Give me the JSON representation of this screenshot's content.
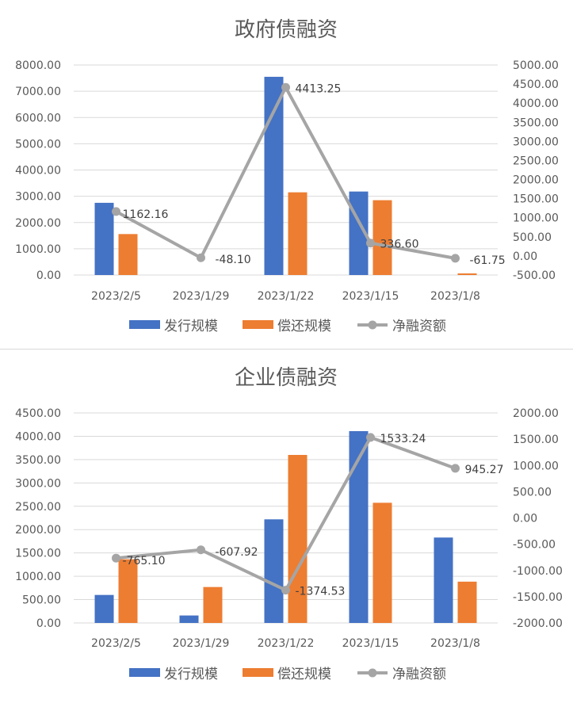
{
  "colors": {
    "issuance": "#4472c4",
    "repayment": "#ed7d31",
    "net": "#a5a5a5",
    "grid": "#d9d9d9",
    "text": "#595959",
    "title": "#595959"
  },
  "chart_data": [
    {
      "type": "bar",
      "title": "政府债融资",
      "categories": [
        "2023/2/5",
        "2023/1/29",
        "2023/1/22",
        "2023/1/15",
        "2023/1/8"
      ],
      "series": [
        {
          "name": "发行规模",
          "type": "bar",
          "axis": "left",
          "values": [
            2750,
            0,
            7550,
            3180,
            0
          ]
        },
        {
          "name": "偿还规模",
          "type": "bar",
          "axis": "left",
          "values": [
            1560,
            0,
            3150,
            2850,
            62
          ]
        },
        {
          "name": "净融资额",
          "type": "line",
          "axis": "right",
          "values": [
            1162.16,
            -48.1,
            4413.25,
            336.6,
            -61.75
          ],
          "labels": [
            "1162.16",
            "-48.10",
            "4413.25",
            "336.60",
            "-61.75"
          ]
        }
      ],
      "y_left": {
        "min": 0,
        "max": 8000,
        "step": 1000,
        "ticks": [
          "0.00",
          "1000.00",
          "2000.00",
          "3000.00",
          "4000.00",
          "5000.00",
          "6000.00",
          "7000.00",
          "8000.00"
        ]
      },
      "y_right": {
        "min": -500,
        "max": 5000,
        "step": 500,
        "ticks": [
          "-500.00",
          "0.00",
          "500.00",
          "1000.00",
          "1500.00",
          "2000.00",
          "2500.00",
          "3000.00",
          "3500.00",
          "4000.00",
          "4500.00",
          "5000.00"
        ]
      },
      "grid": true,
      "legend_position": "bottom"
    },
    {
      "type": "bar",
      "title": "企业债融资",
      "categories": [
        "2023/2/5",
        "2023/1/29",
        "2023/1/22",
        "2023/1/15",
        "2023/1/8"
      ],
      "series": [
        {
          "name": "发行规模",
          "type": "bar",
          "axis": "left",
          "values": [
            600,
            160,
            2220,
            4110,
            1830
          ]
        },
        {
          "name": "偿还规模",
          "type": "bar",
          "axis": "left",
          "values": [
            1365,
            770,
            3600,
            2575,
            885
          ]
        },
        {
          "name": "净融资额",
          "type": "line",
          "axis": "right",
          "values": [
            -765.1,
            -607.92,
            -1374.53,
            1533.24,
            945.27
          ],
          "labels": [
            "-765.10",
            "-607.92",
            "-1374.53",
            "1533.24",
            "945.27"
          ]
        }
      ],
      "y_left": {
        "min": 0,
        "max": 4500,
        "step": 500,
        "ticks": [
          "0.00",
          "500.00",
          "1000.00",
          "1500.00",
          "2000.00",
          "2500.00",
          "3000.00",
          "3500.00",
          "4000.00",
          "4500.00"
        ]
      },
      "y_right": {
        "min": -2000,
        "max": 2000,
        "step": 500,
        "ticks": [
          "-2000.00",
          "-1500.00",
          "-1000.00",
          "-500.00",
          "0.00",
          "500.00",
          "1000.00",
          "1500.00",
          "2000.00"
        ]
      },
      "grid": true,
      "legend_position": "bottom"
    }
  ]
}
